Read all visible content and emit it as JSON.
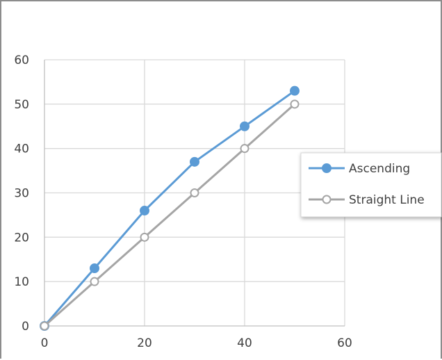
{
  "chart_data": {
    "type": "line",
    "title": "",
    "xlabel": "",
    "ylabel": "",
    "xlim": [
      0,
      60
    ],
    "ylim": [
      0,
      60
    ],
    "xticks": [
      0,
      20,
      40,
      60
    ],
    "yticks": [
      0,
      10,
      20,
      30,
      40,
      50,
      60
    ],
    "grid": true,
    "legend_position": "right",
    "series": [
      {
        "name": "Ascending",
        "color": "#5b9bd5",
        "marker": "filled-circle",
        "x": [
          0,
          10,
          20,
          30,
          40,
          50
        ],
        "y": [
          0,
          13,
          26,
          37,
          45,
          53
        ]
      },
      {
        "name": "Straight Line",
        "color": "#a5a5a5",
        "marker": "hollow-circle",
        "x": [
          0,
          10,
          20,
          30,
          40,
          50
        ],
        "y": [
          0,
          10,
          20,
          30,
          40,
          50
        ]
      }
    ]
  }
}
